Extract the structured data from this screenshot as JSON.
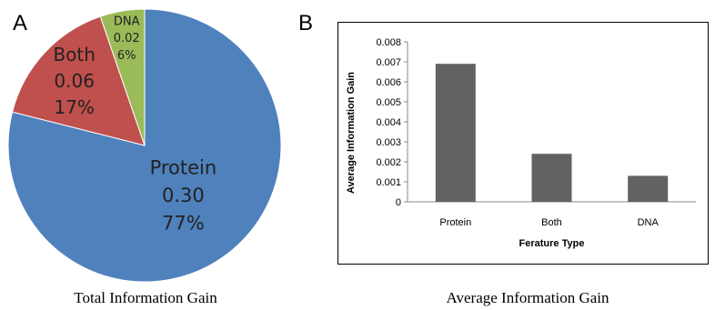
{
  "panels": {
    "a_letter": "A",
    "b_letter": "B"
  },
  "chart_data": [
    {
      "type": "pie",
      "title": "Total Information Gain",
      "categories": [
        "Protein",
        "Both",
        "DNA"
      ],
      "values": [
        0.3,
        0.06,
        0.02
      ],
      "value_labels": [
        "0.30",
        "0.06",
        "0.02"
      ],
      "percent_labels": [
        "77%",
        "17%",
        "6%"
      ],
      "percents": [
        77,
        17,
        6
      ],
      "colors": [
        "#4f81bd",
        "#c0504d",
        "#9bbb59"
      ]
    },
    {
      "type": "bar",
      "title": "Average Information Gain",
      "categories": [
        "Protein",
        "Both",
        "DNA"
      ],
      "values": [
        0.0069,
        0.0024,
        0.0013
      ],
      "xlabel": "Ferature Type",
      "ylabel": "Average Information Gain",
      "ylim": [
        0,
        0.008
      ],
      "yticks": [
        "0",
        "0.001",
        "0.002",
        "0.003",
        "0.004",
        "0.005",
        "0.006",
        "0.007",
        "0.008"
      ],
      "grid": false,
      "bar_color": "#626262"
    }
  ]
}
